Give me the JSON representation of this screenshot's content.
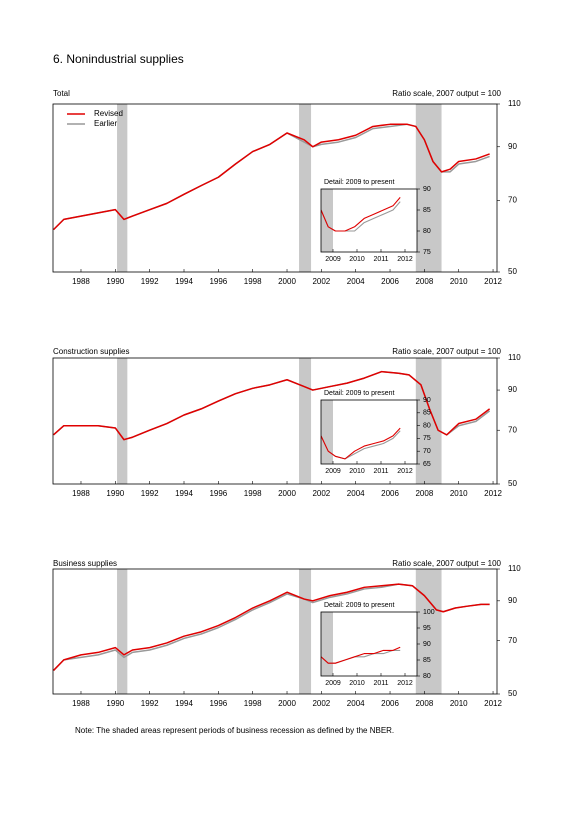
{
  "page_title": "6. Nonindustrial supplies",
  "note": "Note: The shaded areas represent periods of business recession as defined by the NBER.",
  "chart_data": [
    {
      "type": "line",
      "title": "Total",
      "subtitle": "Ratio scale, 2007 output = 100",
      "y_scale": "log",
      "xlim": [
        1986.87,
        2012.73
      ],
      "xticks": [
        {
          "value": 1988.5,
          "label": "1988"
        },
        {
          "value": 1990.5,
          "label": "1990"
        },
        {
          "value": 1992.5,
          "label": "1992"
        },
        {
          "value": 1994.5,
          "label": "1994"
        },
        {
          "value": 1996.5,
          "label": "1996"
        },
        {
          "value": 1998.5,
          "label": "1998"
        },
        {
          "value": 2000.5,
          "label": "2000"
        },
        {
          "value": 2002.5,
          "label": "2002"
        },
        {
          "value": 2004.5,
          "label": "2004"
        },
        {
          "value": 2006.5,
          "label": "2006"
        },
        {
          "value": 2008.5,
          "label": "2008"
        },
        {
          "value": 2010.5,
          "label": "2010"
        },
        {
          "value": 2012.5,
          "label": "2012"
        }
      ],
      "ylim": [
        50,
        110
      ],
      "yticks": [
        50,
        70,
        90,
        110
      ],
      "recessions": [
        [
          1990.6,
          1991.2
        ],
        [
          2001.2,
          2001.9
        ],
        [
          2008.0,
          2009.5
        ]
      ],
      "x": [
        1986.9,
        1987.5,
        1988.5,
        1989.5,
        1990.5,
        1991.0,
        1991.5,
        1992.5,
        1993.5,
        1994.5,
        1995.5,
        1996.5,
        1997.5,
        1998.5,
        1999.5,
        2000.5,
        2001.5,
        2002.0,
        2002.5,
        2003.5,
        2004.5,
        2005.5,
        2006.5,
        2007.5,
        2008.0,
        2008.5,
        2009.0,
        2009.5,
        2010.0,
        2010.5,
        2011.5,
        2012.3
      ],
      "series": [
        {
          "name": "Revised",
          "color": "#e00000",
          "values": [
            61,
            64,
            65,
            66,
            67,
            64,
            65,
            67,
            69,
            72,
            75,
            78,
            83,
            88,
            91,
            96,
            93,
            90,
            92,
            93,
            95,
            99,
            100,
            100,
            99,
            93,
            84,
            80,
            81,
            84,
            85,
            87
          ]
        },
        {
          "name": "Earlier",
          "color": "#999999",
          "values": [
            61,
            64,
            65,
            66,
            67,
            64,
            65,
            67,
            69,
            72,
            75,
            78,
            83,
            88,
            91,
            96,
            92,
            90,
            91,
            92,
            94,
            98,
            99,
            100,
            99,
            93,
            84,
            80,
            80,
            83,
            84,
            86
          ]
        }
      ],
      "inset": {
        "title": "Detail: 2009 to present",
        "xlim": [
          2009,
          2013
        ],
        "xticks": [
          {
            "value": 2009.5,
            "label": "2009"
          },
          {
            "value": 2010.5,
            "label": "2010"
          },
          {
            "value": 2011.5,
            "label": "2011"
          },
          {
            "value": 2012.5,
            "label": "2012"
          }
        ],
        "ylim": [
          75,
          90
        ],
        "yticks": [
          75,
          80,
          85,
          90
        ],
        "x": [
          2009.0,
          2009.3,
          2009.6,
          2010.0,
          2010.4,
          2010.8,
          2011.2,
          2011.6,
          2012.0,
          2012.3
        ],
        "series": [
          {
            "color": "#e00000",
            "values": [
              85,
              81,
              80,
              80,
              81,
              83,
              84,
              85,
              86,
              88
            ]
          },
          {
            "color": "#999999",
            "values": [
              85,
              81,
              80,
              80,
              80,
              82,
              83,
              84,
              85,
              87
            ]
          }
        ]
      }
    },
    {
      "type": "line",
      "title": "Construction supplies",
      "subtitle": "Ratio scale, 2007 output = 100",
      "y_scale": "log",
      "xlim": [
        1986.87,
        2012.73
      ],
      "xticks": [
        {
          "value": 1988.5,
          "label": "1988"
        },
        {
          "value": 1990.5,
          "label": "1990"
        },
        {
          "value": 1992.5,
          "label": "1992"
        },
        {
          "value": 1994.5,
          "label": "1994"
        },
        {
          "value": 1996.5,
          "label": "1996"
        },
        {
          "value": 1998.5,
          "label": "1998"
        },
        {
          "value": 2000.5,
          "label": "2000"
        },
        {
          "value": 2002.5,
          "label": "2002"
        },
        {
          "value": 2004.5,
          "label": "2004"
        },
        {
          "value": 2006.5,
          "label": "2006"
        },
        {
          "value": 2008.5,
          "label": "2008"
        },
        {
          "value": 2010.5,
          "label": "2010"
        },
        {
          "value": 2012.5,
          "label": "2012"
        }
      ],
      "ylim": [
        50,
        110
      ],
      "yticks": [
        50,
        70,
        90,
        110
      ],
      "recessions": [
        [
          1990.6,
          1991.2
        ],
        [
          2001.2,
          2001.9
        ],
        [
          2008.0,
          2009.5
        ]
      ],
      "x": [
        1986.9,
        1987.5,
        1988.5,
        1989.5,
        1990.5,
        1991.0,
        1991.5,
        1992.5,
        1993.5,
        1994.5,
        1995.5,
        1996.5,
        1997.5,
        1998.5,
        1999.5,
        2000.5,
        2001.5,
        2002.0,
        2003.0,
        2004.0,
        2005.0,
        2006.0,
        2007.0,
        2007.6,
        2008.3,
        2008.8,
        2009.3,
        2009.8,
        2010.5,
        2011.5,
        2012.3
      ],
      "series": [
        {
          "color": "#e00000",
          "values": [
            68,
            72,
            72,
            72,
            71,
            66,
            67,
            70,
            73,
            77,
            80,
            84,
            88,
            91,
            93,
            96,
            92,
            90,
            92,
            94,
            97,
            101,
            100,
            99,
            93,
            80,
            70,
            68,
            73,
            75,
            80
          ]
        },
        {
          "color": "#999999",
          "values": [
            68,
            72,
            72,
            72,
            71,
            66,
            67,
            70,
            73,
            77,
            80,
            84,
            88,
            91,
            93,
            96,
            92,
            90,
            92,
            94,
            97,
            101,
            100,
            99,
            93,
            80,
            70,
            68,
            72,
            74,
            79
          ]
        }
      ],
      "inset": {
        "title": "Detail: 2009 to present",
        "xlim": [
          2009,
          2013
        ],
        "xticks": [
          {
            "value": 2009.5,
            "label": "2009"
          },
          {
            "value": 2010.5,
            "label": "2010"
          },
          {
            "value": 2011.5,
            "label": "2011"
          },
          {
            "value": 2012.5,
            "label": "2012"
          }
        ],
        "ylim": [
          65,
          90
        ],
        "yticks": [
          65,
          70,
          75,
          80,
          85,
          90
        ],
        "x": [
          2009.0,
          2009.3,
          2009.6,
          2010.0,
          2010.4,
          2010.8,
          2011.2,
          2011.6,
          2012.0,
          2012.3
        ],
        "series": [
          {
            "color": "#e00000",
            "values": [
              76,
              70,
              68,
              67,
              70,
              72,
              73,
              74,
              76,
              79
            ]
          },
          {
            "color": "#999999",
            "values": [
              76,
              70,
              68,
              67,
              69,
              71,
              72,
              73,
              75,
              78
            ]
          }
        ]
      }
    },
    {
      "type": "line",
      "title": "Business supplies",
      "subtitle": "Ratio scale, 2007 output = 100",
      "y_scale": "log",
      "xlim": [
        1986.87,
        2012.73
      ],
      "xticks": [
        {
          "value": 1988.5,
          "label": "1988"
        },
        {
          "value": 1990.5,
          "label": "1990"
        },
        {
          "value": 1992.5,
          "label": "1992"
        },
        {
          "value": 1994.5,
          "label": "1994"
        },
        {
          "value": 1996.5,
          "label": "1996"
        },
        {
          "value": 1998.5,
          "label": "1998"
        },
        {
          "value": 2000.5,
          "label": "2000"
        },
        {
          "value": 2002.5,
          "label": "2002"
        },
        {
          "value": 2004.5,
          "label": "2004"
        },
        {
          "value": 2006.5,
          "label": "2006"
        },
        {
          "value": 2008.5,
          "label": "2008"
        },
        {
          "value": 2010.5,
          "label": "2010"
        },
        {
          "value": 2012.5,
          "label": "2012"
        }
      ],
      "ylim": [
        50,
        110
      ],
      "yticks": [
        50,
        70,
        90,
        110
      ],
      "recessions": [
        [
          1990.6,
          1991.2
        ],
        [
          2001.2,
          2001.9
        ],
        [
          2008.0,
          2009.5
        ]
      ],
      "x": [
        1986.9,
        1987.5,
        1988.5,
        1989.5,
        1990.5,
        1991.0,
        1991.5,
        1992.5,
        1993.5,
        1994.5,
        1995.5,
        1996.5,
        1997.5,
        1998.5,
        1999.5,
        2000.5,
        2001.5,
        2002.0,
        2003.0,
        2004.0,
        2005.0,
        2006.0,
        2007.0,
        2007.8,
        2008.5,
        2009.2,
        2009.6,
        2010.3,
        2011.0,
        2011.8,
        2012.3
      ],
      "series": [
        {
          "color": "#e00000",
          "values": [
            58,
            62,
            64,
            65,
            67,
            64,
            66,
            67,
            69,
            72,
            74,
            77,
            81,
            86,
            90,
            95,
            91,
            90,
            93,
            95,
            98,
            99,
            100,
            99,
            93,
            85,
            84,
            86,
            87,
            88,
            88
          ]
        },
        {
          "color": "#999999",
          "values": [
            58,
            62,
            63,
            64,
            66,
            63,
            65,
            66,
            68,
            71,
            73,
            76,
            80,
            85,
            89,
            94,
            91,
            89,
            92,
            94,
            97,
            98,
            100,
            99,
            93,
            85,
            84,
            86,
            87,
            88,
            88
          ]
        }
      ],
      "inset": {
        "title": "Detail: 2009 to present",
        "xlim": [
          2009,
          2013
        ],
        "xticks": [
          {
            "value": 2009.5,
            "label": "2009"
          },
          {
            "value": 2010.5,
            "label": "2010"
          },
          {
            "value": 2011.5,
            "label": "2011"
          },
          {
            "value": 2012.5,
            "label": "2012"
          }
        ],
        "ylim": [
          80,
          100
        ],
        "yticks": [
          80,
          85,
          90,
          95,
          100
        ],
        "x": [
          2009.0,
          2009.3,
          2009.6,
          2010.0,
          2010.4,
          2010.8,
          2011.2,
          2011.6,
          2012.0,
          2012.3
        ],
        "series": [
          {
            "color": "#e00000",
            "values": [
              86,
              84,
              84,
              85,
              86,
              87,
              87,
              88,
              88,
              89
            ]
          },
          {
            "color": "#999999",
            "values": [
              86,
              84,
              84,
              85,
              86,
              86,
              87,
              87,
              88,
              88
            ]
          }
        ]
      }
    }
  ]
}
